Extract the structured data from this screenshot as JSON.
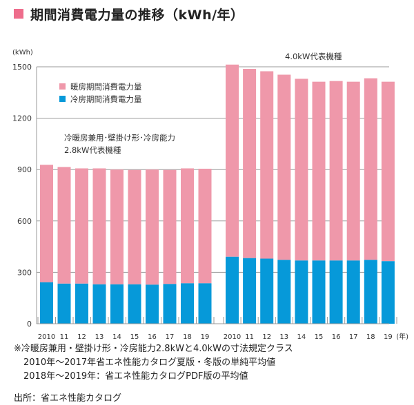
{
  "title": "期間消費電力量の推移（kWh/年）",
  "colors": {
    "heating": "#ef98aa",
    "cooling": "#0699d9",
    "title_marker": "#ee6d8c",
    "grid": "#999999"
  },
  "chart_data": {
    "type": "bar",
    "stacked": true,
    "title": "期間消費電力量の推移（kWh/年）",
    "ylabel": "(kWh)",
    "xlabel": "(年)",
    "ylim": [
      0,
      1500
    ],
    "yticks": [
      0,
      300,
      600,
      900,
      1200,
      1500
    ],
    "grid": true,
    "legend": {
      "placement": "top-left",
      "entries": [
        {
          "name": "暖房期間消費電力量",
          "color": "#ef98aa"
        },
        {
          "name": "冷房期間消費電力量",
          "color": "#0699d9"
        }
      ]
    },
    "groups": [
      {
        "label": "冷暖房兼用･壁掛け形･冷房能力\n2.8kW代表機種",
        "label_lines": [
          "冷暖房兼用･壁掛け形･冷房能力",
          "2.8kW代表機種"
        ],
        "categories": [
          "2010",
          "11",
          "12",
          "13",
          "14",
          "15",
          "16",
          "17",
          "18",
          "19"
        ],
        "series": [
          {
            "name": "冷房期間消費電力量",
            "values": [
              242,
              234,
              234,
              230,
              230,
              230,
              228,
              232,
              236,
              236
            ]
          },
          {
            "name": "暖房期間消費電力量",
            "values": [
              686,
              681,
              673,
              677,
              670,
              668,
              672,
              666,
              671,
              669
            ]
          }
        ],
        "totals": [
          928,
          915,
          907,
          907,
          900,
          898,
          900,
          898,
          907,
          905
        ]
      },
      {
        "label": "4.0kW代表機種",
        "label_lines": [
          "4.0kW代表機種"
        ],
        "categories": [
          "2010",
          "11",
          "12",
          "13",
          "14",
          "15",
          "16",
          "17",
          "18",
          "19"
        ],
        "series": [
          {
            "name": "冷房期間消費電力量",
            "values": [
              391,
              383,
              380,
              373,
              369,
              369,
              369,
              369,
              373,
              365
            ]
          },
          {
            "name": "暖房期間消費電力量",
            "values": [
              1122,
              1105,
              1094,
              1081,
              1061,
              1044,
              1048,
              1044,
              1060,
              1048
            ]
          }
        ],
        "totals": [
          1513,
          1488,
          1474,
          1454,
          1430,
          1413,
          1417,
          1413,
          1433,
          1413
        ]
      }
    ]
  },
  "notes": [
    "※冷暖房兼用・壁掛け形・冷房能力2.8kWと4.0kWの寸法規定クラス",
    "2010年〜2017年省エネ性能カタログ夏版・冬版の単純平均値",
    "2018年〜2019年：省エネ性能カタログPDF版の平均値"
  ],
  "source": "出所：省エネ性能カタログ"
}
